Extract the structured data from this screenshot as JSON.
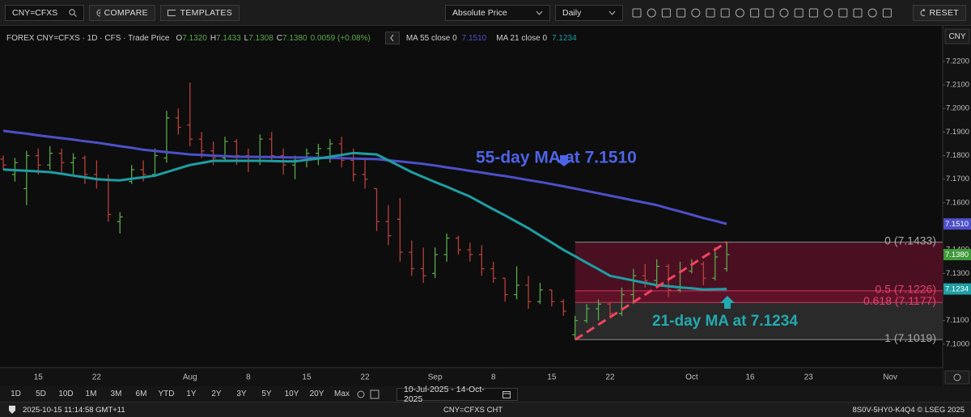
{
  "toolbar": {
    "symbol": "CNY=CFXS",
    "compare": "COMPARE",
    "templates": "TEMPLATES",
    "price_mode": "Absolute Price",
    "interval": "Daily",
    "reset": "RESET"
  },
  "header": {
    "instrument": "FOREX CNY=CFXS · 1D · CFS · Trade Price",
    "ohlc": [
      {
        "key": "O",
        "value": "7.1320"
      },
      {
        "key": "H",
        "value": "7.1433"
      },
      {
        "key": "L",
        "value": "7.1308"
      },
      {
        "key": "C",
        "value": "7.1380"
      }
    ],
    "change": "0.0059 (+0.08%)",
    "currency": "CNY"
  },
  "chart_data": {
    "type": "ohlc",
    "categories": [
      null,
      null,
      null,
      "15",
      null,
      null,
      null,
      null,
      "22",
      null,
      null,
      null,
      null,
      null,
      null,
      null,
      "Aug",
      null,
      null,
      null,
      null,
      "8",
      null,
      null,
      null,
      null,
      "15",
      null,
      null,
      null,
      null,
      "22",
      null,
      null,
      null,
      null,
      null,
      "Sep",
      null,
      null,
      null,
      null,
      "8",
      null,
      null,
      null,
      null,
      "15",
      null,
      null,
      null,
      null,
      "22",
      null,
      null,
      null,
      null,
      null,
      null,
      "Oct",
      null,
      null,
      null,
      null,
      "16",
      null,
      null,
      null,
      null,
      "23",
      null,
      null,
      null,
      null,
      null,
      null,
      "Nov",
      null,
      null,
      null,
      null
    ],
    "open": [
      7.1785,
      7.172,
      7.166,
      7.18,
      7.176,
      7.181,
      7.177,
      7.179,
      7.172,
      7.17,
      7.152,
      7.169,
      7.174,
      7.172,
      7.179,
      7.196,
      7.193,
      7.187,
      7.182,
      7.179,
      7.186,
      7.18,
      7.178,
      7.187,
      7.18,
      7.176,
      7.178,
      7.181,
      7.183,
      7.185,
      7.178,
      7.172,
      7.166,
      7.152,
      7.153,
      7.139,
      7.132,
      7.13,
      7.138,
      7.145,
      7.14,
      7.138,
      7.132,
      7.128,
      7.121,
      7.125,
      7.118,
      7.123,
      7.118,
      7.104,
      7.11,
      7.115,
      7.117,
      7.113,
      7.121,
      7.129,
      7.127,
      7.133,
      7.123,
      7.131,
      7.134,
      7.128,
      7.132,
      null,
      null,
      null,
      null,
      null,
      null,
      null,
      null,
      null,
      null,
      null,
      null,
      null,
      null,
      null,
      null,
      null,
      null
    ],
    "high": [
      7.18,
      7.179,
      7.182,
      7.183,
      7.184,
      7.183,
      7.181,
      7.18,
      7.178,
      7.172,
      7.156,
      7.176,
      7.178,
      7.183,
      7.199,
      7.2,
      7.211,
      7.19,
      7.186,
      7.188,
      7.187,
      7.183,
      7.189,
      7.19,
      7.183,
      7.18,
      7.183,
      7.185,
      7.187,
      7.188,
      7.183,
      7.179,
      7.166,
      7.159,
      7.162,
      7.144,
      7.141,
      7.141,
      7.147,
      7.146,
      7.143,
      7.142,
      7.135,
      7.128,
      7.133,
      7.129,
      7.126,
      7.123,
      7.119,
      7.112,
      7.117,
      7.119,
      7.118,
      7.124,
      7.132,
      7.134,
      7.136,
      7.134,
      7.135,
      7.136,
      7.135,
      7.141,
      7.1433,
      null,
      null,
      null,
      null,
      null,
      null,
      null,
      null,
      null,
      null,
      null,
      null,
      null,
      null,
      null,
      null,
      null,
      null
    ],
    "low": [
      7.174,
      7.169,
      7.159,
      7.172,
      7.174,
      7.173,
      7.172,
      7.168,
      7.166,
      7.152,
      7.147,
      7.168,
      7.169,
      7.171,
      7.177,
      7.189,
      7.184,
      7.179,
      7.176,
      7.178,
      7.176,
      7.173,
      7.176,
      7.178,
      7.172,
      7.17,
      7.175,
      7.176,
      7.177,
      7.175,
      7.169,
      7.166,
      7.148,
      7.142,
      7.135,
      7.129,
      7.126,
      7.128,
      7.135,
      7.138,
      7.135,
      7.129,
      7.126,
      7.118,
      7.119,
      7.115,
      7.117,
      7.116,
      7.112,
      7.1019,
      7.109,
      7.11,
      7.111,
      7.112,
      7.117,
      7.124,
      7.125,
      7.12,
      7.122,
      7.13,
      7.125,
      7.127,
      7.1308,
      null,
      null,
      null,
      null,
      null,
      null,
      null,
      null,
      null,
      null,
      null,
      null,
      null,
      null,
      null,
      null,
      null,
      null
    ],
    "close": [
      7.176,
      7.177,
      7.18,
      7.176,
      7.181,
      7.177,
      7.179,
      7.172,
      7.17,
      7.155,
      7.154,
      7.174,
      7.172,
      7.18,
      7.196,
      7.192,
      7.187,
      7.182,
      7.179,
      7.186,
      7.18,
      7.178,
      7.187,
      7.18,
      7.176,
      7.178,
      7.181,
      7.183,
      7.185,
      7.178,
      7.172,
      7.17,
      7.152,
      7.146,
      7.139,
      7.132,
      7.129,
      7.138,
      7.145,
      7.14,
      7.138,
      7.132,
      7.128,
      7.121,
      7.125,
      7.118,
      7.123,
      7.118,
      7.114,
      7.11,
      7.115,
      7.117,
      7.113,
      7.121,
      7.129,
      7.127,
      7.133,
      7.123,
      7.131,
      7.134,
      7.128,
      7.137,
      7.138,
      null,
      null,
      null,
      null,
      null,
      null,
      null,
      null,
      null,
      null,
      null,
      null,
      null,
      null,
      null,
      null,
      null,
      null
    ],
    "up_color": "#5aa84a",
    "down_color": "#b8403b",
    "moving_averages": [
      {
        "name": "MA 55 close 0",
        "color": "#4d50c8",
        "values": [
          7.1905,
          7.1899,
          7.1893,
          7.1886,
          7.188,
          7.1874,
          7.1868,
          7.1861,
          7.1855,
          7.1848,
          7.184,
          7.1833,
          7.1825,
          7.182,
          7.1815,
          7.181,
          7.1805,
          7.1803,
          7.18,
          7.1798,
          7.1795,
          7.1795,
          7.1794,
          7.1794,
          7.1793,
          7.1792,
          7.1792,
          7.1791,
          7.179,
          7.1789,
          7.1788,
          7.1786,
          7.1785,
          7.178,
          7.1775,
          7.177,
          7.1765,
          7.1758,
          7.175,
          7.1743,
          7.1735,
          7.1728,
          7.172,
          7.1713,
          7.1705,
          7.1696,
          7.1688,
          7.1679,
          7.167,
          7.166,
          7.165,
          7.164,
          7.163,
          7.162,
          7.161,
          7.16,
          7.159,
          7.1576,
          7.1563,
          7.1549,
          7.1535,
          7.1523,
          7.151,
          null,
          null,
          null,
          null,
          null,
          null,
          null,
          null,
          null,
          null,
          null,
          null,
          null,
          null,
          null,
          null,
          null,
          null
        ]
      },
      {
        "name": "MA 21 close 0",
        "color": "#1e9ea3",
        "values": [
          7.1741,
          7.1738,
          7.1736,
          7.1733,
          7.173,
          7.1723,
          7.1715,
          7.1708,
          7.17,
          7.1697,
          7.1695,
          7.1702,
          7.1708,
          7.1715,
          7.173,
          7.1745,
          7.176,
          7.1769,
          7.1778,
          7.1778,
          7.1778,
          7.1778,
          7.1778,
          7.1777,
          7.1776,
          7.1775,
          7.1782,
          7.1788,
          7.1795,
          7.1803,
          7.1811,
          7.1808,
          7.1805,
          7.178,
          7.1755,
          7.173,
          7.1709,
          7.1688,
          7.1668,
          7.1647,
          7.1626,
          7.1599,
          7.1572,
          7.1546,
          7.1519,
          7.1492,
          7.1461,
          7.1431,
          7.14,
          7.1373,
          7.1345,
          7.1318,
          7.129,
          7.128,
          7.127,
          7.126,
          7.125,
          7.1246,
          7.1241,
          7.1237,
          7.1232,
          7.1233,
          7.1234,
          null,
          null,
          null,
          null,
          null,
          null,
          null,
          null,
          null,
          null,
          null,
          null,
          null,
          null,
          null,
          null,
          null,
          null
        ]
      }
    ],
    "axis_markers": [
      {
        "value": 7.151,
        "label": "7.1510",
        "color": "#4d50c8"
      },
      {
        "value": 7.138,
        "label": "7.1380",
        "color": "#3f9a3a"
      },
      {
        "value": 7.1234,
        "label": "7.1234",
        "color": "#1e9ea3"
      }
    ],
    "fib": {
      "values": [
        7.1433,
        7.1226,
        7.1177,
        7.1019
      ],
      "value_labels": [
        "0 (7.1433)",
        "0.5 (7.1226)",
        "0.618 (7.1177)",
        "1 (7.1019)"
      ],
      "line_colors": [
        "#8c8c8c",
        "#d2365e",
        "#d2365e",
        "#8c8c8c"
      ],
      "label_colors": [
        "#a6a6a6",
        "#e2426c",
        "#e2426c",
        "#a6a6a6"
      ],
      "zone_colors": [
        "#4a1022",
        "#5e1228",
        "#2a2a2a"
      ],
      "trend_color": "#f0435f"
    },
    "annotations": [
      {
        "text": "55-day MA at 7.1510",
        "color": "#4d63e6"
      },
      {
        "text": "21-day MA at 7.1234",
        "color": "#22aab0"
      }
    ],
    "ylim": [
      7.09,
      7.233
    ],
    "yticks": [
      {
        "value": 7.1,
        "label": "7.1000"
      },
      {
        "value": 7.11,
        "label": "7.1100"
      },
      {
        "value": 7.13,
        "label": "7.1300"
      },
      {
        "value": 7.14,
        "label": "7.1400"
      },
      {
        "value": 7.16,
        "label": "7.1600"
      },
      {
        "value": 7.17,
        "label": "7.1700"
      },
      {
        "value": 7.18,
        "label": "7.1800"
      },
      {
        "value": 7.19,
        "label": "7.1900"
      },
      {
        "value": 7.2,
        "label": "7.2000"
      },
      {
        "value": 7.21,
        "label": "7.2100"
      },
      {
        "value": 7.22,
        "label": "7.2200"
      }
    ],
    "grid": false
  },
  "range_bar": {
    "buttons": [
      "1D",
      "5D",
      "10D",
      "1M",
      "3M",
      "6M",
      "YTD",
      "1Y",
      "2Y",
      "3Y",
      "5Y",
      "10Y",
      "20Y",
      "Max"
    ],
    "date_range": "10-Jul-2025  -  14-Oct-2025"
  },
  "status_bar": {
    "timestamp": "2025-10-15 11:14:58 GMT+11",
    "center": "CNY=CFXS CHT",
    "right": "8S0V-5HY0-K4Q4 © LSEG 2025"
  }
}
